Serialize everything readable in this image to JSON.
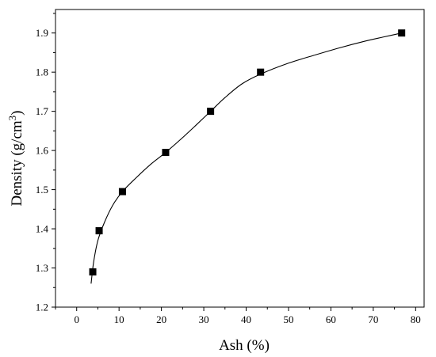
{
  "chart_data": {
    "type": "scatter",
    "title": "",
    "xlabel": "Ash (%)",
    "ylabel_main": "Density (g/cm",
    "ylabel_sup": "3",
    "ylabel_end": ")",
    "xlim": [
      -5,
      82
    ],
    "ylim": [
      1.2,
      1.96
    ],
    "x_ticks": [
      0,
      10,
      20,
      30,
      40,
      50,
      60,
      70,
      80
    ],
    "x_tick_labels": [
      "0",
      "10",
      "20",
      "30",
      "40",
      "50",
      "60",
      "70",
      "80"
    ],
    "y_ticks": [
      1.2,
      1.3,
      1.4,
      1.5,
      1.6,
      1.7,
      1.8,
      1.9
    ],
    "y_tick_labels": [
      "1.2",
      "1.3",
      "1.4",
      "1.5",
      "1.6",
      "1.7",
      "1.8",
      "1.9"
    ],
    "grid": false,
    "legend": "none",
    "series": [
      {
        "marker": "square",
        "color": "#000000",
        "points": [
          {
            "x": 3.8,
            "y": 1.29
          },
          {
            "x": 5.3,
            "y": 1.395
          },
          {
            "x": 10.8,
            "y": 1.495
          },
          {
            "x": 21.0,
            "y": 1.595
          },
          {
            "x": 31.6,
            "y": 1.7
          },
          {
            "x": 43.4,
            "y": 1.8
          },
          {
            "x": 76.7,
            "y": 1.9
          }
        ]
      }
    ],
    "fit_curve": {
      "color": "#000000",
      "points": [
        {
          "x": 3.4,
          "y": 1.26
        },
        {
          "x": 4.0,
          "y": 1.315
        },
        {
          "x": 5.0,
          "y": 1.37
        },
        {
          "x": 6.5,
          "y": 1.415
        },
        {
          "x": 8.5,
          "y": 1.46
        },
        {
          "x": 10.8,
          "y": 1.495
        },
        {
          "x": 14.0,
          "y": 1.53
        },
        {
          "x": 17.5,
          "y": 1.565
        },
        {
          "x": 21.0,
          "y": 1.595
        },
        {
          "x": 24.5,
          "y": 1.628
        },
        {
          "x": 28.0,
          "y": 1.663
        },
        {
          "x": 31.6,
          "y": 1.7
        },
        {
          "x": 35.0,
          "y": 1.735
        },
        {
          "x": 39.0,
          "y": 1.77
        },
        {
          "x": 43.4,
          "y": 1.795
        },
        {
          "x": 50.0,
          "y": 1.823
        },
        {
          "x": 56.0,
          "y": 1.843
        },
        {
          "x": 62.0,
          "y": 1.862
        },
        {
          "x": 68.0,
          "y": 1.879
        },
        {
          "x": 72.5,
          "y": 1.89
        },
        {
          "x": 76.7,
          "y": 1.9
        }
      ]
    }
  }
}
